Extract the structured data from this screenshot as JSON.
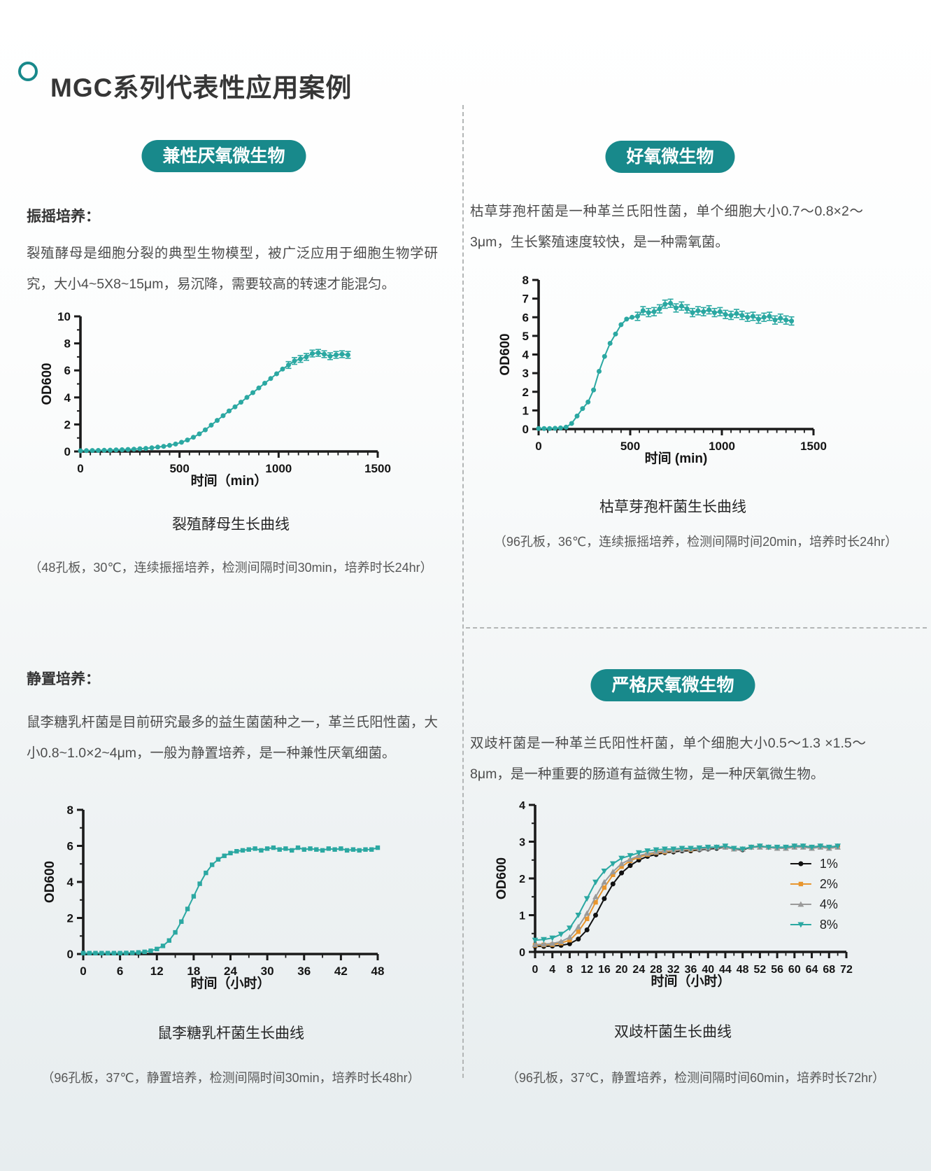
{
  "header": {
    "title": "MGC系列代表性应用案例"
  },
  "accent_color": "#18898b",
  "curve_color": "#2ba8a2",
  "sections": {
    "left_top": {
      "badge": "兼性厌氧微生物",
      "heading": "振摇培养：",
      "paragraph": "裂殖酵母是细胞分裂的典型生物模型，被广泛应用于细胞生物学研究，大小4~5X8~15μm，易沉降，需要较高的转速才能混匀。",
      "caption": "裂殖酵母生长曲线",
      "note": "（48孔板，30℃，连续振摇培养，检测间隔时间30min，培养时长24hr）"
    },
    "right_top": {
      "badge": "好氧微生物",
      "paragraph": "枯草芽孢杆菌是一种革兰氏阳性菌，单个细胞大小0.7～0.8×2～3μm，生长繁殖速度较快，是一种需氧菌。",
      "caption": "枯草芽孢杆菌生长曲线",
      "note": "（96孔板，36℃，连续振摇培养，检测间隔时间20min，培养时长24hr）"
    },
    "left_bottom": {
      "heading": "静置培养：",
      "paragraph": "鼠李糖乳杆菌是目前研究最多的益生菌菌种之一，革兰氏阳性菌，大小0.8~1.0×2~4μm，一般为静置培养，是一种兼性厌氧细菌。",
      "caption": "鼠李糖乳杆菌生长曲线",
      "note": "（96孔板，37℃，静置培养，检测间隔时间30min，培养时长48hr）"
    },
    "right_bottom": {
      "badge": "严格厌氧微生物",
      "paragraph": "双歧杆菌是一种革兰氏阳性杆菌，单个细胞大小0.5～1.3 ×1.5～8μm，是一种重要的肠道有益微生物，是一种厌氧微生物。",
      "caption": "双歧杆菌生长曲线",
      "note": "（96孔板，37℃，静置培养，检测间隔时间60min，培养时长72hr）"
    }
  },
  "chart_data": [
    {
      "type": "line",
      "title": "裂殖酵母生长曲线",
      "xlabel": "时间（min）",
      "ylabel": "OD600",
      "xlim": [
        0,
        1500
      ],
      "ylim": [
        0,
        10
      ],
      "xticks": [
        0,
        500,
        1000,
        1500
      ],
      "xminor": 50,
      "yticks": [
        0,
        2,
        4,
        6,
        8,
        10
      ],
      "yminor": 1,
      "tick_fs": 17,
      "grid": false,
      "margins": {
        "l": 60,
        "r": 15,
        "t": 14,
        "b": 58
      },
      "series": [
        {
          "name": "OD600",
          "color": "#2ba8a2",
          "marker": "circle",
          "err": 0.25,
          "err_from": 1040,
          "x": [
            0,
            30,
            60,
            90,
            120,
            150,
            180,
            210,
            240,
            270,
            300,
            330,
            360,
            390,
            420,
            450,
            480,
            510,
            540,
            570,
            600,
            630,
            660,
            690,
            720,
            750,
            780,
            810,
            840,
            870,
            900,
            930,
            960,
            990,
            1020,
            1050,
            1080,
            1110,
            1140,
            1170,
            1200,
            1230,
            1260,
            1290,
            1320,
            1350
          ],
          "y": [
            0.05,
            0.06,
            0.07,
            0.08,
            0.09,
            0.1,
            0.12,
            0.13,
            0.15,
            0.17,
            0.2,
            0.23,
            0.27,
            0.32,
            0.38,
            0.45,
            0.55,
            0.68,
            0.85,
            1.05,
            1.3,
            1.6,
            1.95,
            2.3,
            2.65,
            3.0,
            3.3,
            3.65,
            4.0,
            4.35,
            4.7,
            5.05,
            5.4,
            5.75,
            6.1,
            6.4,
            6.7,
            6.85,
            7.0,
            7.25,
            7.3,
            7.2,
            7.05,
            7.15,
            7.2,
            7.15
          ]
        }
      ]
    },
    {
      "type": "line",
      "title": "枯草芽孢杆菌生长曲线",
      "xlabel": "时间 (min)",
      "ylabel": "OD600",
      "xlim": [
        0,
        1500
      ],
      "ylim": [
        0,
        8
      ],
      "xticks": [
        0,
        500,
        1000,
        1500
      ],
      "xminor": 50,
      "yticks": [
        0,
        1,
        2,
        3,
        4,
        5,
        6,
        7,
        8
      ],
      "yminor": 0,
      "tick_fs": 17,
      "grid": false,
      "margins": {
        "l": 60,
        "r": 17,
        "t": 14,
        "b": 58
      },
      "series": [
        {
          "name": "OD600",
          "color": "#2ba8a2",
          "marker": "circle",
          "err": 0.22,
          "err_from": 520,
          "x": [
            0,
            30,
            60,
            90,
            120,
            150,
            180,
            210,
            240,
            270,
            300,
            330,
            360,
            390,
            420,
            450,
            480,
            510,
            540,
            570,
            600,
            630,
            660,
            690,
            720,
            750,
            780,
            810,
            840,
            870,
            900,
            930,
            960,
            990,
            1020,
            1050,
            1080,
            1110,
            1140,
            1170,
            1200,
            1230,
            1260,
            1290,
            1320,
            1350,
            1380
          ],
          "y": [
            0.03,
            0.03,
            0.03,
            0.04,
            0.06,
            0.1,
            0.3,
            0.7,
            1.1,
            1.45,
            2.1,
            3.1,
            3.9,
            4.6,
            5.1,
            5.6,
            5.9,
            6.0,
            6.05,
            6.35,
            6.25,
            6.3,
            6.45,
            6.7,
            6.75,
            6.5,
            6.6,
            6.45,
            6.25,
            6.35,
            6.3,
            6.4,
            6.25,
            6.3,
            6.15,
            6.1,
            6.2,
            6.1,
            6.0,
            6.05,
            5.9,
            6.0,
            6.05,
            5.85,
            5.95,
            5.85,
            5.8
          ]
        }
      ]
    },
    {
      "type": "line",
      "title": "鼠李糖乳杆菌生长曲线",
      "xlabel": "时间（小时）",
      "ylabel": "OD600",
      "xlim": [
        0,
        48
      ],
      "ylim": [
        0,
        8
      ],
      "xticks": [
        0,
        6,
        12,
        18,
        24,
        30,
        36,
        42,
        48
      ],
      "xminor": 3,
      "yticks": [
        0,
        2,
        4,
        6,
        8
      ],
      "yminor": 1,
      "tick_fs": 17,
      "grid": false,
      "margins": {
        "l": 60,
        "r": 15,
        "t": 14,
        "b": 58
      },
      "series": [
        {
          "name": "OD600",
          "color": "#2ba8a2",
          "marker": "square",
          "x": [
            0,
            1,
            2,
            3,
            4,
            5,
            6,
            7,
            8,
            9,
            10,
            11,
            12,
            13,
            14,
            15,
            16,
            17,
            18,
            19,
            20,
            21,
            22,
            23,
            24,
            25,
            26,
            27,
            28,
            29,
            30,
            31,
            32,
            33,
            34,
            35,
            36,
            37,
            38,
            39,
            40,
            41,
            42,
            43,
            44,
            45,
            46,
            47,
            48
          ],
          "y": [
            0.05,
            0.05,
            0.05,
            0.05,
            0.05,
            0.05,
            0.05,
            0.06,
            0.07,
            0.09,
            0.12,
            0.18,
            0.28,
            0.45,
            0.75,
            1.2,
            1.8,
            2.5,
            3.2,
            3.9,
            4.5,
            4.95,
            5.25,
            5.45,
            5.6,
            5.7,
            5.75,
            5.8,
            5.85,
            5.75,
            5.85,
            5.9,
            5.8,
            5.85,
            5.75,
            5.9,
            5.8,
            5.85,
            5.8,
            5.75,
            5.85,
            5.8,
            5.85,
            5.75,
            5.8,
            5.75,
            5.8,
            5.8,
            5.9
          ]
        }
      ]
    },
    {
      "type": "line",
      "title": "双歧杆菌生长曲线",
      "xlabel": "时间（小时）",
      "ylabel": "OD600",
      "xlim": [
        0,
        72
      ],
      "ylim": [
        0,
        4
      ],
      "xticks": [
        0,
        4,
        8,
        12,
        16,
        20,
        24,
        28,
        32,
        36,
        40,
        44,
        48,
        52,
        56,
        60,
        64,
        68,
        72
      ],
      "xminor": 2,
      "yticks": [
        0,
        1,
        2,
        3,
        4
      ],
      "yminor": 0.5,
      "tick_fs": 16,
      "grid": false,
      "legend_pos": [
        0.82,
        0.4
      ],
      "legend_dy": 29,
      "margins": {
        "l": 60,
        "r": 15,
        "t": 14,
        "b": 58
      },
      "series": [
        {
          "name": "1%",
          "color": "#111111",
          "marker": "circle",
          "x": [
            0,
            2,
            4,
            6,
            8,
            10,
            12,
            14,
            16,
            18,
            20,
            22,
            24,
            26,
            28,
            30,
            32,
            34,
            36,
            38,
            40,
            42,
            44,
            46,
            48,
            50,
            52,
            54,
            56,
            58,
            60,
            62,
            64,
            66,
            68,
            70
          ],
          "y": [
            0.15,
            0.15,
            0.16,
            0.18,
            0.22,
            0.35,
            0.6,
            1.0,
            1.45,
            1.85,
            2.15,
            2.35,
            2.5,
            2.6,
            2.65,
            2.7,
            2.72,
            2.75,
            2.75,
            2.78,
            2.8,
            2.82,
            2.85,
            2.8,
            2.78,
            2.85,
            2.88,
            2.85,
            2.82,
            2.85,
            2.88,
            2.88,
            2.85,
            2.88,
            2.85,
            2.88
          ]
        },
        {
          "name": "2%",
          "color": "#e8962e",
          "marker": "square",
          "x": [
            0,
            2,
            4,
            6,
            8,
            10,
            12,
            14,
            16,
            18,
            20,
            22,
            24,
            26,
            28,
            30,
            32,
            34,
            36,
            38,
            40,
            42,
            44,
            46,
            48,
            50,
            52,
            54,
            56,
            58,
            60,
            62,
            64,
            66,
            68,
            70
          ],
          "y": [
            0.18,
            0.19,
            0.2,
            0.24,
            0.32,
            0.55,
            0.9,
            1.35,
            1.75,
            2.1,
            2.32,
            2.48,
            2.58,
            2.65,
            2.7,
            2.72,
            2.75,
            2.78,
            2.78,
            2.8,
            2.82,
            2.85,
            2.85,
            2.82,
            2.8,
            2.85,
            2.88,
            2.85,
            2.85,
            2.82,
            2.85,
            2.88,
            2.85,
            2.85,
            2.82,
            2.85
          ]
        },
        {
          "name": "4%",
          "color": "#9a9a9a",
          "marker": "triangle-up",
          "x": [
            0,
            2,
            4,
            6,
            8,
            10,
            12,
            14,
            16,
            18,
            20,
            22,
            24,
            26,
            28,
            30,
            32,
            34,
            36,
            38,
            40,
            42,
            44,
            46,
            48,
            50,
            52,
            54,
            56,
            58,
            60,
            62,
            64,
            66,
            68,
            70
          ],
          "y": [
            0.2,
            0.21,
            0.23,
            0.28,
            0.4,
            0.68,
            1.05,
            1.5,
            1.9,
            2.18,
            2.4,
            2.52,
            2.62,
            2.68,
            2.72,
            2.75,
            2.76,
            2.78,
            2.8,
            2.8,
            2.82,
            2.85,
            2.85,
            2.8,
            2.8,
            2.85,
            2.85,
            2.85,
            2.82,
            2.82,
            2.85,
            2.85,
            2.82,
            2.85,
            2.82,
            2.85
          ]
        },
        {
          "name": "8%",
          "color": "#2ba8a2",
          "marker": "triangle-down",
          "x": [
            0,
            2,
            4,
            6,
            8,
            10,
            12,
            14,
            16,
            18,
            20,
            22,
            24,
            26,
            28,
            30,
            32,
            34,
            36,
            38,
            40,
            42,
            44,
            46,
            48,
            50,
            52,
            54,
            56,
            58,
            60,
            62,
            64,
            66,
            68,
            70
          ],
          "y": [
            0.32,
            0.34,
            0.38,
            0.48,
            0.65,
            1.0,
            1.45,
            1.9,
            2.2,
            2.4,
            2.55,
            2.62,
            2.7,
            2.75,
            2.78,
            2.8,
            2.8,
            2.82,
            2.82,
            2.83,
            2.85,
            2.85,
            2.88,
            2.82,
            2.8,
            2.85,
            2.88,
            2.85,
            2.85,
            2.85,
            2.88,
            2.88,
            2.85,
            2.88,
            2.85,
            2.88
          ]
        }
      ]
    }
  ]
}
